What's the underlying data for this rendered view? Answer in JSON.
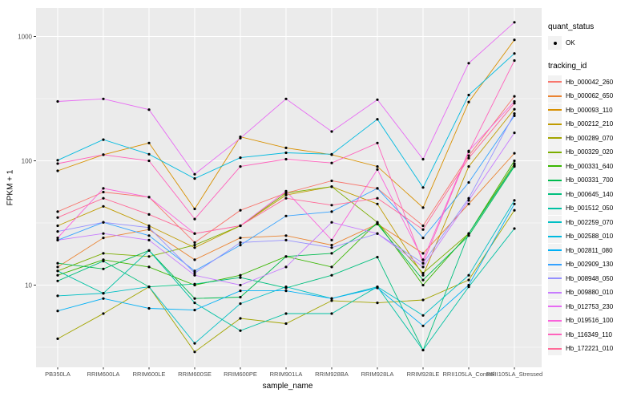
{
  "figure": {
    "legend_quant_title": "quant_status",
    "legend_quant_items": [
      {
        "label": "OK",
        "marker": "black-point"
      }
    ],
    "legend_tracking_title": "tracking_id"
  },
  "chart_data": {
    "type": "line",
    "title": "",
    "xlabel": "sample_name",
    "ylabel": "FPKM + 1",
    "y_scale": "log10",
    "y_ticks": [
      10,
      100,
      1000
    ],
    "y_minor_ticks": [
      3.162,
      31.62,
      316.2
    ],
    "ylim": [
      2.2,
      1700
    ],
    "grid": true,
    "legend_position": "right",
    "panel_color": "#EBEBEB",
    "grid_color": "#FFFFFF",
    "tick_label_color": "#4D4D4D",
    "point_color": "#000000",
    "x_categories": [
      "PB350LA",
      "RRIM600LA",
      "RRIM600LE",
      "RRIM600SE",
      "RRIM600PE",
      "RRIM901LA",
      "RRIM928BA",
      "RRIM928LA",
      "RRIM928LE",
      "RRII105LA_Control",
      "RRII105LA_Stressed"
    ],
    "series": [
      {
        "name": "Hb_000042_260",
        "color": "#F8766D",
        "values": [
          39,
          56,
          51,
          22,
          40,
          55,
          69,
          60,
          30,
          110,
          330
        ]
      },
      {
        "name": "Hb_000062_650",
        "color": "#EA8331",
        "values": [
          14,
          24,
          28,
          16,
          24,
          25,
          21,
          31,
          18,
          45,
          115
        ]
      },
      {
        "name": "Hb_000093_110",
        "color": "#D89000",
        "values": [
          83,
          112,
          139,
          41,
          156,
          127,
          112,
          90,
          42,
          297,
          940
        ]
      },
      {
        "name": "Hb_000212_210",
        "color": "#C09B00",
        "values": [
          30,
          43,
          30,
          20,
          30,
          53,
          62,
          45,
          12,
          90,
          260
        ]
      },
      {
        "name": "Hb_000289_070",
        "color": "#A3A500",
        "values": [
          3.7,
          5.9,
          9.7,
          2.9,
          5.4,
          4.9,
          7.5,
          7.2,
          7.6,
          11,
          40
        ]
      },
      {
        "name": "Hb_000329_020",
        "color": "#7CAE00",
        "values": [
          13,
          18,
          17,
          21,
          30,
          55,
          62,
          32,
          12.5,
          26,
          95
        ]
      },
      {
        "name": "Hb_000331_640",
        "color": "#39B600",
        "values": [
          12,
          16,
          14,
          10,
          12,
          17,
          14,
          32,
          10,
          26,
          100
        ]
      },
      {
        "name": "Hb_000331_700",
        "color": "#00BB4E",
        "values": [
          15,
          13.5,
          19,
          7.8,
          8,
          17,
          18,
          31,
          11,
          25,
          90
        ]
      },
      {
        "name": "Hb_000645_140",
        "color": "#00BF7D",
        "values": [
          10.8,
          15.6,
          9.7,
          10.2,
          11.5,
          9.5,
          12,
          16.8,
          3.0,
          26,
          92
        ]
      },
      {
        "name": "Hb_001512_050",
        "color": "#00C1A3",
        "values": [
          13,
          8.6,
          19,
          7.2,
          4.3,
          5.9,
          5.9,
          9.7,
          3.0,
          9.7,
          28.5
        ]
      },
      {
        "name": "Hb_002259_070",
        "color": "#00BFC4",
        "values": [
          8.2,
          8.6,
          9.7,
          3.4,
          7.1,
          9.7,
          7.8,
          9.7,
          5.7,
          12,
          48
        ]
      },
      {
        "name": "Hb_002588_010",
        "color": "#00BAE0",
        "values": [
          101,
          148,
          113,
          72,
          106,
          116,
          113,
          216,
          61,
          338,
          730
        ]
      },
      {
        "name": "Hb_002811_080",
        "color": "#00B0F6",
        "values": [
          6.2,
          7.8,
          6.5,
          6.3,
          9,
          9,
          7.8,
          9.5,
          4.7,
          10,
          45
        ]
      },
      {
        "name": "Hb_002909_130",
        "color": "#35A2FF",
        "values": [
          23,
          32,
          25,
          13,
          21,
          36,
          39,
          60,
          24,
          67,
          230
        ]
      },
      {
        "name": "Hb_008948_050",
        "color": "#9590FF",
        "values": [
          27,
          32,
          29,
          12.5,
          22,
          23,
          20,
          26,
          15,
          50,
          240
        ]
      },
      {
        "name": "Hb_009880_010",
        "color": "#C77CFF",
        "values": [
          23,
          26,
          23,
          12,
          10,
          14,
          32,
          26,
          14,
          48,
          168
        ]
      },
      {
        "name": "Hb_012753_230",
        "color": "#E76BF3",
        "values": [
          300,
          315,
          258,
          78,
          152,
          315,
          172,
          310,
          103,
          610,
          1300
        ]
      },
      {
        "name": "Hb_019516_100",
        "color": "#FA62DB",
        "values": [
          24,
          60,
          51,
          26,
          30,
          57,
          23,
          85,
          16,
          120,
          300
        ]
      },
      {
        "name": "Hb_116349_110",
        "color": "#FF62BC",
        "values": [
          95,
          112,
          100,
          34,
          90,
          103,
          96,
          139,
          15,
          118,
          640
        ]
      },
      {
        "name": "Hb_172221_010",
        "color": "#FF6A98",
        "values": [
          35,
          50,
          37,
          26,
          30,
          50,
          44,
          50,
          28,
          105,
          290
        ]
      }
    ]
  }
}
